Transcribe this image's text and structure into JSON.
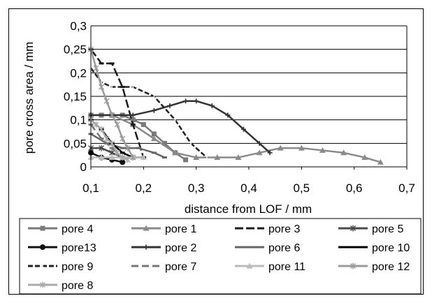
{
  "chart_data": {
    "type": "line",
    "title": "",
    "xlabel": "distance from LOF / mm",
    "ylabel": "pore cross area / mm",
    "xlim": [
      0.1,
      0.7
    ],
    "ylim": [
      0,
      0.3
    ],
    "x_ticks": [
      "0,1",
      "0,2",
      "0,3",
      "0,4",
      "0,5",
      "0,6",
      "0,7"
    ],
    "y_ticks": [
      "0",
      "0,05",
      "0,1",
      "0,15",
      "0,2",
      "0,25",
      "0,3"
    ],
    "grid": "horizontal",
    "legend_position": "bottom",
    "series": [
      {
        "name": "pore 4",
        "color": "#7a7a7a",
        "marker": "square",
        "dash": "",
        "x": [
          0.1,
          0.12,
          0.14,
          0.16,
          0.18,
          0.2,
          0.22,
          0.24,
          0.26,
          0.28
        ],
        "y": [
          0.11,
          0.11,
          0.11,
          0.11,
          0.1,
          0.09,
          0.07,
          0.05,
          0.03,
          0.015
        ]
      },
      {
        "name": "pore 1",
        "color": "#8a8a8a",
        "marker": "triangle",
        "dash": "",
        "x": [
          0.1,
          0.14,
          0.18,
          0.22,
          0.26,
          0.3,
          0.34,
          0.38,
          0.42,
          0.46,
          0.5,
          0.54,
          0.58,
          0.62,
          0.65
        ],
        "y": [
          0.11,
          0.11,
          0.09,
          0.06,
          0.03,
          0.02,
          0.02,
          0.02,
          0.03,
          0.04,
          0.04,
          0.035,
          0.03,
          0.02,
          0.01
        ]
      },
      {
        "name": "pore 3",
        "color": "#1a1a1a",
        "marker": "dash",
        "dash": "12,4",
        "x": [
          0.1,
          0.12,
          0.14,
          0.16,
          0.18,
          0.2
        ],
        "y": [
          0.25,
          0.22,
          0.22,
          0.17,
          0.09,
          0.02
        ]
      },
      {
        "name": "pore 5",
        "color": "#4a4a4a",
        "marker": "asterisk",
        "dash": "",
        "x": [
          0.1,
          0.12,
          0.14,
          0.16,
          0.18
        ],
        "y": [
          0.04,
          0.04,
          0.03,
          0.02,
          0.02
        ]
      },
      {
        "name": "pore13",
        "color": "#111111",
        "marker": "circle",
        "dash": "",
        "x": [
          0.1,
          0.12,
          0.14,
          0.16
        ],
        "y": [
          0.03,
          0.02,
          0.015,
          0.01
        ]
      },
      {
        "name": "pore 2",
        "color": "#333333",
        "marker": "plus",
        "dash": "",
        "x": [
          0.1,
          0.14,
          0.18,
          0.22,
          0.25,
          0.28,
          0.3,
          0.33,
          0.36,
          0.39,
          0.42,
          0.44
        ],
        "y": [
          0.11,
          0.11,
          0.11,
          0.12,
          0.13,
          0.14,
          0.14,
          0.13,
          0.11,
          0.08,
          0.05,
          0.03
        ]
      },
      {
        "name": "pore 6",
        "color": "#666666",
        "marker": "dash",
        "dash": "",
        "x": [
          0.1,
          0.13,
          0.16,
          0.19,
          0.22,
          0.24
        ],
        "y": [
          0.07,
          0.05,
          0.04,
          0.04,
          0.03,
          0.02
        ]
      },
      {
        "name": "pore 10",
        "color": "#000000",
        "marker": "dash",
        "dash": "",
        "x": [
          0.1,
          0.12,
          0.14,
          0.16,
          0.18,
          0.2
        ],
        "y": [
          0.1,
          0.08,
          0.05,
          0.03,
          0.02,
          0.02
        ]
      },
      {
        "name": "pore 9",
        "color": "#222222",
        "marker": "bar",
        "dash": "7,3",
        "x": [
          0.1,
          0.12,
          0.14,
          0.18,
          0.22,
          0.26,
          0.29,
          0.32
        ],
        "y": [
          0.21,
          0.18,
          0.17,
          0.17,
          0.15,
          0.1,
          0.05,
          0.02
        ]
      },
      {
        "name": "pore 7",
        "color": "#777777",
        "marker": "dash",
        "dash": "10,5",
        "x": [
          0.1,
          0.12,
          0.14,
          0.16,
          0.18
        ],
        "y": [
          0.09,
          0.06,
          0.04,
          0.02,
          0.02
        ]
      },
      {
        "name": "pore 11",
        "color": "#bbbbbb",
        "marker": "triangle",
        "dash": "",
        "x": [
          0.1,
          0.12,
          0.14,
          0.16,
          0.18,
          0.2
        ],
        "y": [
          0.02,
          0.02,
          0.02,
          0.02,
          0.02,
          0.02
        ]
      },
      {
        "name": "pore 12",
        "color": "#9a9a9a",
        "marker": "asterisk",
        "dash": "",
        "x": [
          0.1,
          0.11,
          0.12,
          0.13,
          0.14,
          0.15,
          0.16,
          0.17,
          0.18
        ],
        "y": [
          0.25,
          0.21,
          0.17,
          0.14,
          0.11,
          0.09,
          0.06,
          0.04,
          0.02
        ]
      },
      {
        "name": "pore 8",
        "color": "#aaaaaa",
        "marker": "asterisk",
        "dash": "",
        "x": [
          0.1,
          0.11,
          0.12,
          0.13,
          0.14,
          0.15,
          0.16,
          0.17
        ],
        "y": [
          0.1,
          0.09,
          0.08,
          0.06,
          0.05,
          0.03,
          0.02,
          0.015
        ]
      }
    ]
  }
}
